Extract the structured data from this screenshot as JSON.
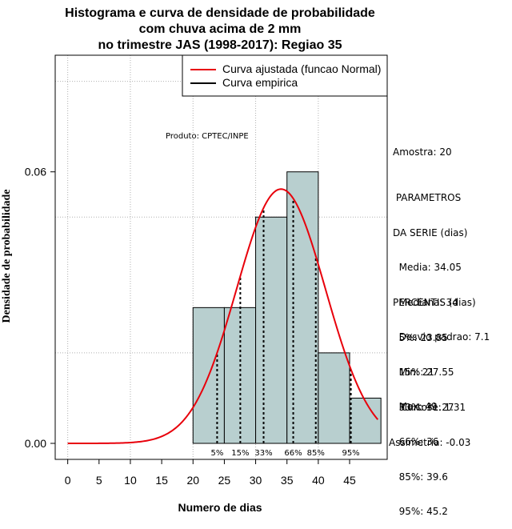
{
  "chart_data": {
    "type": "bar",
    "title_lines": [
      "Histograma e curva de densidade de probabilidade",
      "com chuva acima de 2 mm",
      "no trimestre JAS (1998-2017): Regiao 35"
    ],
    "xlabel": "Numero de dias",
    "ylabel": "Densidade de probabilidade",
    "xlim": [
      -2,
      51
    ],
    "ylim": [
      0,
      0.084
    ],
    "x_ticks": [
      0,
      5,
      10,
      15,
      20,
      25,
      30,
      35,
      40,
      45
    ],
    "y_ticks": [
      0.0,
      0.06
    ],
    "y_tick_labels": [
      "0.00",
      "0.06"
    ],
    "grid_x": [
      0,
      10,
      20,
      30,
      40
    ],
    "grid_y": [
      0.02,
      0.05,
      0.08
    ],
    "bar_color": "#b8cfcf",
    "curve_color": "#e8000b",
    "bins": [
      {
        "x0": 20,
        "x1": 25,
        "density": 0.03
      },
      {
        "x0": 25,
        "x1": 30,
        "density": 0.03
      },
      {
        "x0": 30,
        "x1": 35,
        "density": 0.05
      },
      {
        "x0": 35,
        "x1": 40,
        "density": 0.06
      },
      {
        "x0": 40,
        "x1": 45,
        "density": 0.02
      },
      {
        "x0": 45,
        "x1": 50,
        "density": 0.01
      }
    ],
    "normal_curve": {
      "mean": 34.05,
      "sd": 7.1,
      "x_from": 0,
      "x_to": 49.5
    },
    "percentiles": [
      {
        "label": "5%",
        "value": 23.85
      },
      {
        "label": "15%",
        "value": 27.55
      },
      {
        "label": "33%",
        "value": 31.27
      },
      {
        "label": "66%",
        "value": 36
      },
      {
        "label": "85%",
        "value": 39.6
      },
      {
        "label": "95%",
        "value": 45.2
      }
    ],
    "legend": [
      {
        "label": "Curva ajustada (funcao Normal)",
        "color": "#e8000b"
      },
      {
        "label": "Curva empirica",
        "color": "#000000"
      }
    ],
    "product_label": "Produto: CPTEC/INPE"
  },
  "side_panel": {
    "sample": "Amostra: 20",
    "params_title_1": " PARAMETROS",
    "params_title_2": "DA SERIE (dias)",
    "mean": "  Media: 34.05",
    "median": "  Mediana: 34",
    "sd": "  Desvio padrao: 7.1",
    "min": "  Min: 21",
    "max": "  Max: 49",
    "perc_title": "PERCENTIS (dias)",
    "p5": "  5%: 23.85",
    "p15": "  15%: 27.55",
    "p33": "  33%: 31.27",
    "p66": "  66%: 36",
    "p85": "  85%: 39.6",
    "p95": "  95%: 45.2",
    "kurtosis": "Curtose: 1.31",
    "skewness": "Assimetria: -0.03"
  }
}
